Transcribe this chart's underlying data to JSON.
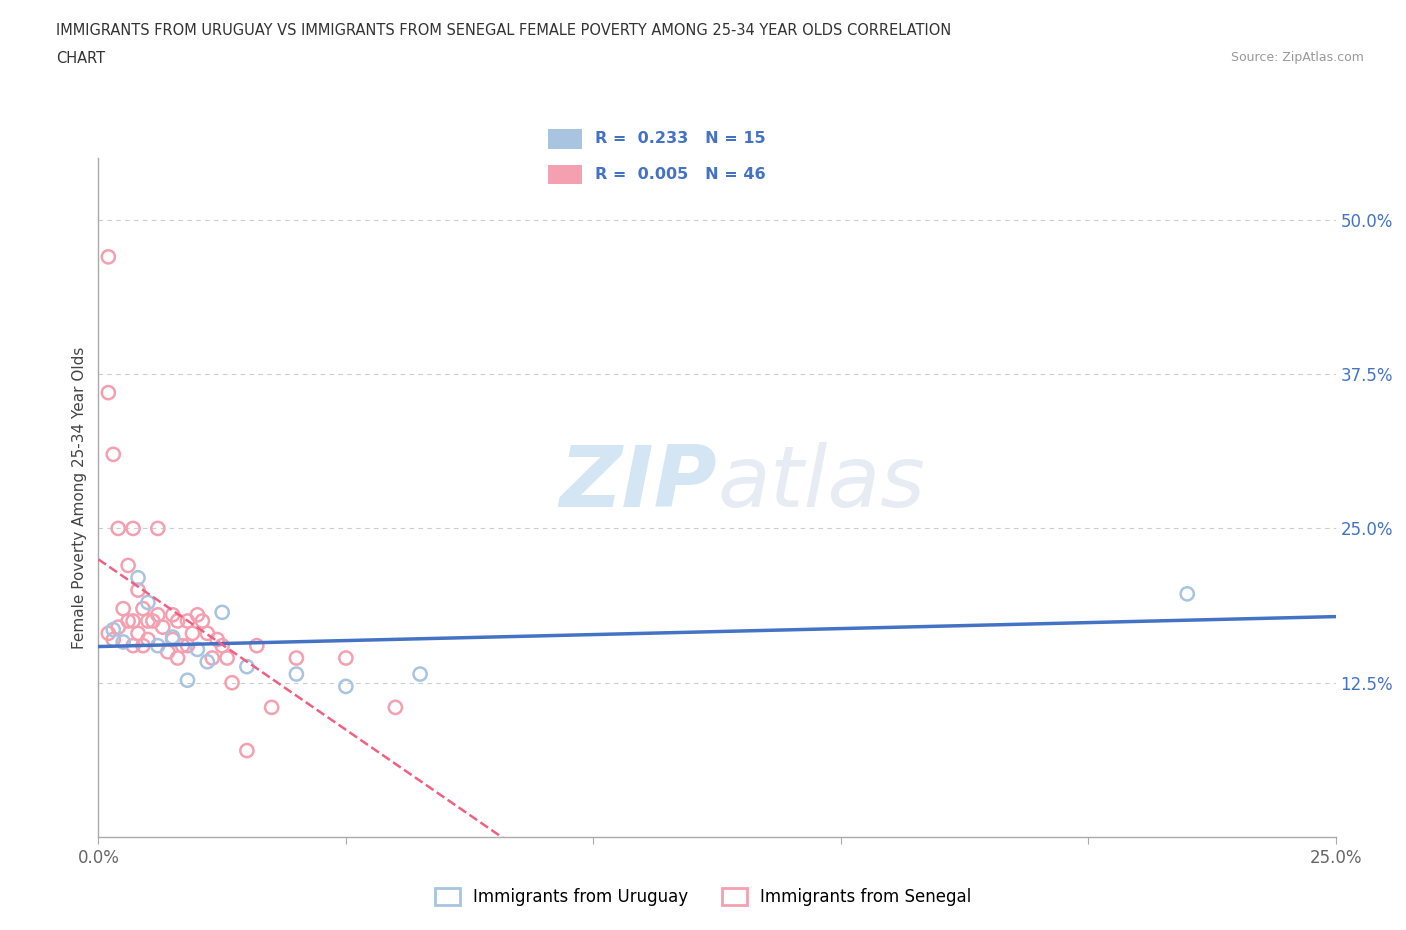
{
  "title_line1": "IMMIGRANTS FROM URUGUAY VS IMMIGRANTS FROM SENEGAL FEMALE POVERTY AMONG 25-34 YEAR OLDS CORRELATION",
  "title_line2": "CHART",
  "source": "Source: ZipAtlas.com",
  "ylabel": "Female Poverty Among 25-34 Year Olds",
  "xlim": [
    0.0,
    0.25
  ],
  "ylim": [
    0.0,
    0.55
  ],
  "yticks": [
    0.0,
    0.125,
    0.25,
    0.375,
    0.5
  ],
  "ytick_labels": [
    "",
    "12.5%",
    "25.0%",
    "37.5%",
    "50.0%"
  ],
  "xticks": [
    0.0,
    0.05,
    0.1,
    0.15,
    0.2,
    0.25
  ],
  "xtick_labels": [
    "0.0%",
    "",
    "",
    "",
    "",
    "25.0%"
  ],
  "uruguay_color": "#a8c4e0",
  "senegal_color": "#f4a0b0",
  "uruguay_line_color": "#4472c4",
  "senegal_line_color": "#f06080",
  "R_uruguay": 0.233,
  "N_uruguay": 15,
  "R_senegal": 0.005,
  "N_senegal": 46,
  "uruguay_x": [
    0.003,
    0.005,
    0.008,
    0.01,
    0.012,
    0.015,
    0.018,
    0.02,
    0.022,
    0.025,
    0.03,
    0.04,
    0.05,
    0.065,
    0.22
  ],
  "uruguay_y": [
    0.168,
    0.158,
    0.21,
    0.19,
    0.155,
    0.162,
    0.127,
    0.152,
    0.142,
    0.182,
    0.138,
    0.132,
    0.122,
    0.132,
    0.197
  ],
  "senegal_x": [
    0.002,
    0.002,
    0.002,
    0.003,
    0.003,
    0.004,
    0.004,
    0.005,
    0.006,
    0.006,
    0.007,
    0.007,
    0.007,
    0.008,
    0.008,
    0.009,
    0.009,
    0.01,
    0.01,
    0.011,
    0.012,
    0.012,
    0.013,
    0.014,
    0.015,
    0.015,
    0.016,
    0.016,
    0.017,
    0.018,
    0.018,
    0.019,
    0.02,
    0.021,
    0.022,
    0.023,
    0.024,
    0.025,
    0.026,
    0.027,
    0.03,
    0.032,
    0.035,
    0.04,
    0.05,
    0.06
  ],
  "senegal_y": [
    0.47,
    0.36,
    0.165,
    0.31,
    0.16,
    0.25,
    0.17,
    0.185,
    0.22,
    0.175,
    0.25,
    0.175,
    0.155,
    0.2,
    0.165,
    0.185,
    0.155,
    0.175,
    0.16,
    0.175,
    0.25,
    0.18,
    0.17,
    0.15,
    0.18,
    0.16,
    0.175,
    0.145,
    0.155,
    0.175,
    0.155,
    0.165,
    0.18,
    0.175,
    0.165,
    0.145,
    0.16,
    0.155,
    0.145,
    0.125,
    0.07,
    0.155,
    0.105,
    0.145,
    0.145,
    0.105
  ],
  "watermark_zip": "ZIP",
  "watermark_atlas": "atlas",
  "background_color": "#ffffff",
  "grid_color": "#cccccc",
  "tick_label_color": "#4472c4",
  "marker_size": 90,
  "marker_linewidth": 1.8,
  "legend_uruguay_label": "Immigrants from Uruguay",
  "legend_senegal_label": "Immigrants from Senegal"
}
